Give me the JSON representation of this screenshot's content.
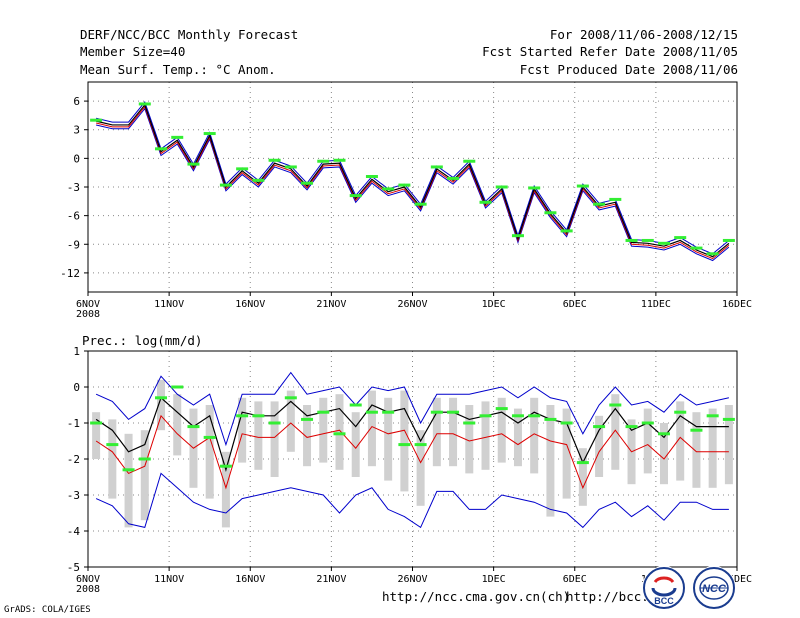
{
  "header": {
    "title": "DERF/NCC/BCC Monthly Forecast",
    "member_size": "Member Size=40",
    "variable": "Mean Surf. Temp.: °C Anom.",
    "period": "For 2008/11/06-2008/12/15",
    "started": "Fcst Started Refer Date 2008/11/05",
    "produced": "Fcst Produced Date 2008/11/06"
  },
  "footer": {
    "url1": "http://ncc.cma.gov.cn(ch)",
    "url2": "http://bcc.",
    "grads": "GrADS: COLA/IGES",
    "logo1": "BCC",
    "logo2": "NCC"
  },
  "colors": {
    "red": "#dd0000",
    "blue": "#0000cc",
    "green": "#33ee33",
    "gray": "#d0d0d0"
  },
  "chart_data": [
    {
      "type": "line",
      "title": "Mean Surf. Temp.: °C Anom.",
      "xlabel": "",
      "ylabel": "",
      "ylim": [
        -14,
        8
      ],
      "yticks": [
        6,
        3,
        0,
        -3,
        -6,
        -9,
        -12
      ],
      "xlim": [
        0,
        40
      ],
      "xticks": [
        {
          "day": 0,
          "label": "6NOV",
          "sub": "2008"
        },
        {
          "day": 5,
          "label": "11NOV"
        },
        {
          "day": 10,
          "label": "16NOV"
        },
        {
          "day": 15,
          "label": "21NOV"
        },
        {
          "day": 20,
          "label": "26NOV"
        },
        {
          "day": 25,
          "label": "1DEC"
        },
        {
          "day": 30,
          "label": "6DEC"
        },
        {
          "day": 35,
          "label": "11DEC"
        },
        {
          "day": 40,
          "label": "16DEC"
        }
      ],
      "x": [
        0,
        1,
        2,
        3,
        4,
        5,
        6,
        7,
        8,
        9,
        10,
        11,
        12,
        13,
        14,
        15,
        16,
        17,
        18,
        19,
        20,
        21,
        22,
        23,
        24,
        25,
        26,
        27,
        28,
        29,
        30,
        31,
        32,
        33,
        34,
        35,
        36,
        37,
        38,
        39
      ],
      "series": [
        {
          "name": "black",
          "values": [
            3.9,
            3.5,
            3.5,
            5.6,
            0.7,
            1.9,
            -0.9,
            2.4,
            -3.0,
            -1.3,
            -2.6,
            -0.5,
            -1.1,
            -2.9,
            -0.6,
            -0.5,
            -4.2,
            -2.2,
            -3.5,
            -3.0,
            -5.1,
            -1.1,
            -2.3,
            -0.6,
            -4.8,
            -3.2,
            -8.4,
            -3.2,
            -5.8,
            -7.8,
            -3.0,
            -5.0,
            -4.6,
            -8.8,
            -8.9,
            -9.2,
            -8.6,
            -9.6,
            -10.3,
            -8.9
          ]
        },
        {
          "name": "red",
          "values": [
            3.7,
            3.3,
            3.3,
            5.4,
            0.5,
            1.7,
            -1.1,
            2.2,
            -3.2,
            -1.5,
            -2.8,
            -0.7,
            -1.3,
            -3.1,
            -0.8,
            -0.7,
            -4.4,
            -2.4,
            -3.7,
            -3.2,
            -5.3,
            -1.3,
            -2.5,
            -0.8,
            -5.0,
            -3.4,
            -8.6,
            -3.4,
            -6.0,
            -8.0,
            -3.2,
            -5.2,
            -4.8,
            -9.0,
            -9.1,
            -9.4,
            -8.8,
            -9.8,
            -10.5,
            -9.1
          ]
        },
        {
          "name": "upper",
          "values": [
            4.2,
            3.8,
            3.8,
            5.9,
            1.0,
            2.2,
            -0.6,
            2.7,
            -2.7,
            -1.0,
            -2.3,
            -0.2,
            -0.8,
            -2.6,
            -0.3,
            -0.2,
            -3.9,
            -1.9,
            -3.2,
            -2.7,
            -4.8,
            -0.8,
            -2.0,
            -0.3,
            -4.5,
            -2.9,
            -8.1,
            -2.9,
            -5.5,
            -7.5,
            -2.7,
            -4.7,
            -4.3,
            -8.5,
            -8.6,
            -8.9,
            -8.3,
            -9.3,
            -10.0,
            -8.6
          ]
        },
        {
          "name": "lower",
          "values": [
            3.5,
            3.1,
            3.1,
            5.2,
            0.3,
            1.5,
            -1.3,
            2.0,
            -3.4,
            -1.7,
            -3.0,
            -0.9,
            -1.5,
            -3.3,
            -1.0,
            -0.9,
            -4.6,
            -2.6,
            -3.9,
            -3.4,
            -5.5,
            -1.5,
            -2.7,
            -1.0,
            -5.2,
            -3.6,
            -8.8,
            -3.6,
            -6.2,
            -8.2,
            -3.4,
            -5.4,
            -5.0,
            -9.2,
            -9.3,
            -9.6,
            -9.0,
            -10.0,
            -10.7,
            -9.3
          ]
        },
        {
          "name": "observed",
          "values": [
            4.0,
            null,
            null,
            5.7,
            1.0,
            2.2,
            -0.6,
            2.6,
            -2.8,
            -1.1,
            -2.3,
            -0.2,
            -0.9,
            -2.6,
            -0.3,
            -0.2,
            -3.9,
            -1.9,
            -3.2,
            -2.8,
            -4.8,
            -0.9,
            -2.1,
            -0.3,
            -4.6,
            -3.0,
            -8.1,
            -3.1,
            -5.7,
            -7.6,
            -2.9,
            -4.8,
            -4.3,
            -8.6,
            -8.6,
            -8.9,
            -8.3,
            -9.4,
            -10.0,
            -8.6
          ]
        }
      ],
      "grid": true
    },
    {
      "type": "line",
      "title": "Prec.: log(mm/d)",
      "xlabel": "",
      "ylabel": "",
      "ylim": [
        -5,
        1
      ],
      "yticks": [
        1,
        0,
        -1,
        -2,
        -3,
        -4,
        -5
      ],
      "xlim": [
        0,
        40
      ],
      "xticks": [
        {
          "day": 0,
          "label": "6NOV",
          "sub": "2008"
        },
        {
          "day": 5,
          "label": "11NOV"
        },
        {
          "day": 10,
          "label": "16NOV"
        },
        {
          "day": 15,
          "label": "21NOV"
        },
        {
          "day": 20,
          "label": "26NOV"
        },
        {
          "day": 25,
          "label": "1DEC"
        },
        {
          "day": 30,
          "label": "6DEC"
        },
        {
          "day": 35,
          "label": "11DEC"
        },
        {
          "day": 40,
          "label": "16DEC"
        }
      ],
      "x": [
        0,
        1,
        2,
        3,
        4,
        5,
        6,
        7,
        8,
        9,
        10,
        11,
        12,
        13,
        14,
        15,
        16,
        17,
        18,
        19,
        20,
        21,
        22,
        23,
        24,
        25,
        26,
        27,
        28,
        29,
        30,
        31,
        32,
        33,
        34,
        35,
        36,
        37,
        38,
        39
      ],
      "series": [
        {
          "name": "black",
          "values": [
            -0.9,
            -1.2,
            -1.8,
            -1.6,
            -0.3,
            -0.7,
            -1.1,
            -0.8,
            -2.3,
            -0.7,
            -0.8,
            -0.8,
            -0.4,
            -0.8,
            -0.7,
            -0.6,
            -1.1,
            -0.5,
            -0.7,
            -0.6,
            -1.5,
            -0.7,
            -0.7,
            -0.9,
            -0.8,
            -0.7,
            -1.0,
            -0.7,
            -0.9,
            -1.0,
            -2.1,
            -1.2,
            -0.6,
            -1.2,
            -1.0,
            -1.4,
            -0.8,
            -1.1,
            -1.1,
            -1.1
          ]
        },
        {
          "name": "red",
          "values": [
            -1.5,
            -1.8,
            -2.4,
            -2.2,
            -0.8,
            -1.3,
            -1.7,
            -1.4,
            -2.8,
            -1.3,
            -1.4,
            -1.4,
            -1.0,
            -1.4,
            -1.3,
            -1.2,
            -1.7,
            -1.1,
            -1.3,
            -1.2,
            -2.1,
            -1.3,
            -1.3,
            -1.5,
            -1.4,
            -1.3,
            -1.6,
            -1.3,
            -1.5,
            -1.6,
            -2.8,
            -1.8,
            -1.2,
            -1.8,
            -1.6,
            -2.0,
            -1.4,
            -1.8,
            -1.8,
            -1.8
          ]
        },
        {
          "name": "upper",
          "values": [
            -0.2,
            -0.4,
            -0.9,
            -0.6,
            0.3,
            -0.2,
            -0.5,
            -0.2,
            -1.6,
            -0.2,
            -0.2,
            -0.2,
            0.4,
            -0.2,
            -0.1,
            0.0,
            -0.5,
            0.0,
            -0.1,
            0.0,
            -1.0,
            -0.2,
            -0.2,
            -0.2,
            -0.1,
            0.0,
            -0.3,
            0.0,
            -0.3,
            -0.4,
            -1.3,
            -0.5,
            0.0,
            -0.5,
            -0.4,
            -0.7,
            -0.2,
            -0.5,
            -0.4,
            -0.3
          ]
        },
        {
          "name": "lower",
          "values": [
            -3.1,
            -3.3,
            -3.8,
            -3.9,
            -2.4,
            -2.8,
            -3.2,
            -3.4,
            -3.5,
            -3.1,
            -3.0,
            -2.9,
            -2.8,
            -2.9,
            -3.0,
            -3.5,
            -3.0,
            -2.8,
            -3.4,
            -3.6,
            -3.9,
            -2.9,
            -2.9,
            -3.4,
            -3.4,
            -3.0,
            -3.1,
            -3.2,
            -3.4,
            -3.5,
            -3.9,
            -3.4,
            -3.2,
            -3.6,
            -3.3,
            -3.7,
            -3.2,
            -3.2,
            -3.4,
            -3.4
          ]
        },
        {
          "name": "observed",
          "values": [
            -1.0,
            -1.6,
            -2.3,
            -2.0,
            -0.3,
            0.0,
            -1.1,
            -1.4,
            -2.2,
            -0.8,
            -0.8,
            -1.0,
            -0.3,
            -0.9,
            -0.7,
            -1.3,
            -0.5,
            -0.7,
            -0.7,
            -1.6,
            -1.6,
            -0.7,
            -0.7,
            -1.0,
            -0.8,
            -0.6,
            -0.8,
            -0.8,
            -0.9,
            -1.0,
            -2.1,
            -1.1,
            -0.5,
            -1.1,
            -1.0,
            -1.3,
            -0.7,
            -1.2,
            -0.8,
            -0.9
          ]
        }
      ],
      "boxes": [
        {
          "hi": -0.7,
          "lo": -2.0
        },
        {
          "hi": -0.9,
          "lo": -3.1
        },
        {
          "hi": -1.3,
          "lo": -3.9
        },
        {
          "hi": -1.2,
          "lo": -3.7
        },
        {
          "hi": 0.2,
          "lo": -1.2
        },
        {
          "hi": -0.2,
          "lo": -1.9
        },
        {
          "hi": -0.6,
          "lo": -2.8
        },
        {
          "hi": -0.5,
          "lo": -3.1
        },
        {
          "hi": -1.8,
          "lo": -3.9
        },
        {
          "hi": -0.3,
          "lo": -2.1
        },
        {
          "hi": -0.4,
          "lo": -2.3
        },
        {
          "hi": -0.4,
          "lo": -2.5
        },
        {
          "hi": -0.1,
          "lo": -1.8
        },
        {
          "hi": -0.5,
          "lo": -2.2
        },
        {
          "hi": -0.3,
          "lo": -2.1
        },
        {
          "hi": -0.2,
          "lo": -2.3
        },
        {
          "hi": -0.7,
          "lo": -2.5
        },
        {
          "hi": -0.1,
          "lo": -2.2
        },
        {
          "hi": -0.3,
          "lo": -2.6
        },
        {
          "hi": -0.1,
          "lo": -2.9
        },
        {
          "hi": -1.2,
          "lo": -3.3
        },
        {
          "hi": -0.3,
          "lo": -2.2
        },
        {
          "hi": -0.3,
          "lo": -2.2
        },
        {
          "hi": -0.5,
          "lo": -2.4
        },
        {
          "hi": -0.4,
          "lo": -2.3
        },
        {
          "hi": -0.3,
          "lo": -2.1
        },
        {
          "hi": -0.6,
          "lo": -2.2
        },
        {
          "hi": -0.3,
          "lo": -2.4
        },
        {
          "hi": -0.5,
          "lo": -3.6
        },
        {
          "hi": -0.6,
          "lo": -3.1
        },
        {
          "hi": -1.7,
          "lo": -3.3
        },
        {
          "hi": -0.8,
          "lo": -2.5
        },
        {
          "hi": -0.2,
          "lo": -2.3
        },
        {
          "hi": -0.9,
          "lo": -2.7
        },
        {
          "hi": -0.6,
          "lo": -2.4
        },
        {
          "hi": -1.0,
          "lo": -2.7
        },
        {
          "hi": -0.4,
          "lo": -2.6
        },
        {
          "hi": -0.7,
          "lo": -2.8
        },
        {
          "hi": -0.6,
          "lo": -2.8
        },
        {
          "hi": -0.5,
          "lo": -2.7
        }
      ],
      "grid": true
    }
  ]
}
